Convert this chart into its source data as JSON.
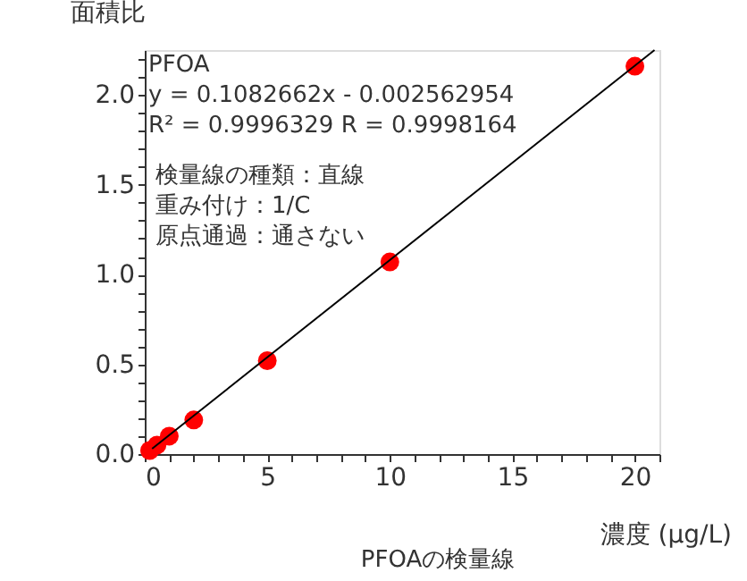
{
  "chart_data": {
    "type": "scatter",
    "title": "PFOAの検量線",
    "xlabel": "濃度 (μg/L)",
    "ylabel": "面積比",
    "annotations": [
      "PFOA",
      "y = 0.1082662x  -  0.002562954",
      "R² = 0.9996329  R = 0.9998164",
      "検量線の種類：直線",
      "重み付け：1/C",
      "原点通過：通さない"
    ],
    "series": [
      {
        "type": "scatter",
        "color": "#ff0000",
        "marker": "circle",
        "x": [
          0.2,
          0.5,
          1,
          2,
          5,
          10,
          20
        ],
        "values": [
          0.02,
          0.05,
          0.1,
          0.19,
          0.52,
          1.07,
          2.16
        ]
      },
      {
        "type": "line",
        "color": "#000000",
        "line_style": "solid",
        "x": [
          0.3,
          20.8
        ],
        "values": [
          0.03,
          2.25
        ]
      }
    ],
    "xlim": [
      0,
      21
    ],
    "ylim": [
      0,
      2.25
    ],
    "xticks": [
      0,
      {
        "value": 1,
        "label": null
      },
      {
        "value": 2,
        "label": null
      },
      {
        "value": 3,
        "label": null
      },
      {
        "value": 4,
        "label": null
      },
      5,
      {
        "value": 6,
        "label": null
      },
      {
        "value": 7,
        "label": null
      },
      {
        "value": 8,
        "label": null
      },
      {
        "value": 9,
        "label": null
      },
      10,
      {
        "value": 11,
        "label": null
      },
      {
        "value": 12,
        "label": null
      },
      {
        "value": 13,
        "label": null
      },
      {
        "value": 14,
        "label": null
      },
      15,
      {
        "value": 16,
        "label": null
      },
      {
        "value": 17,
        "label": null
      },
      {
        "value": 18,
        "label": null
      },
      {
        "value": 19,
        "label": null
      },
      20,
      {
        "value": 21,
        "label": null
      }
    ],
    "yticks": [
      {
        "value": 0,
        "label": "0.0"
      },
      {
        "value": 0.1,
        "label": null
      },
      {
        "value": 0.2,
        "label": null
      },
      {
        "value": 0.3,
        "label": null
      },
      {
        "value": 0.4,
        "label": null
      },
      0.5,
      {
        "value": 0.6,
        "label": null
      },
      {
        "value": 0.7,
        "label": null
      },
      {
        "value": 0.8,
        "label": null
      },
      {
        "value": 0.9,
        "label": null
      },
      {
        "value": 1,
        "label": "1.0"
      },
      {
        "value": 1.1,
        "label": null
      },
      {
        "value": 1.2,
        "label": null
      },
      {
        "value": 1.3,
        "label": null
      },
      {
        "value": 1.4,
        "label": null
      },
      1.5,
      {
        "value": 1.6,
        "label": null
      },
      {
        "value": 1.7,
        "label": null
      },
      {
        "value": 1.8,
        "label": null
      },
      {
        "value": 1.9,
        "label": null
      },
      {
        "value": 2,
        "label": "2.0"
      },
      {
        "value": 2.1,
        "label": null
      },
      {
        "value": 2.2,
        "label": null
      }
    ],
    "grid": false
  }
}
